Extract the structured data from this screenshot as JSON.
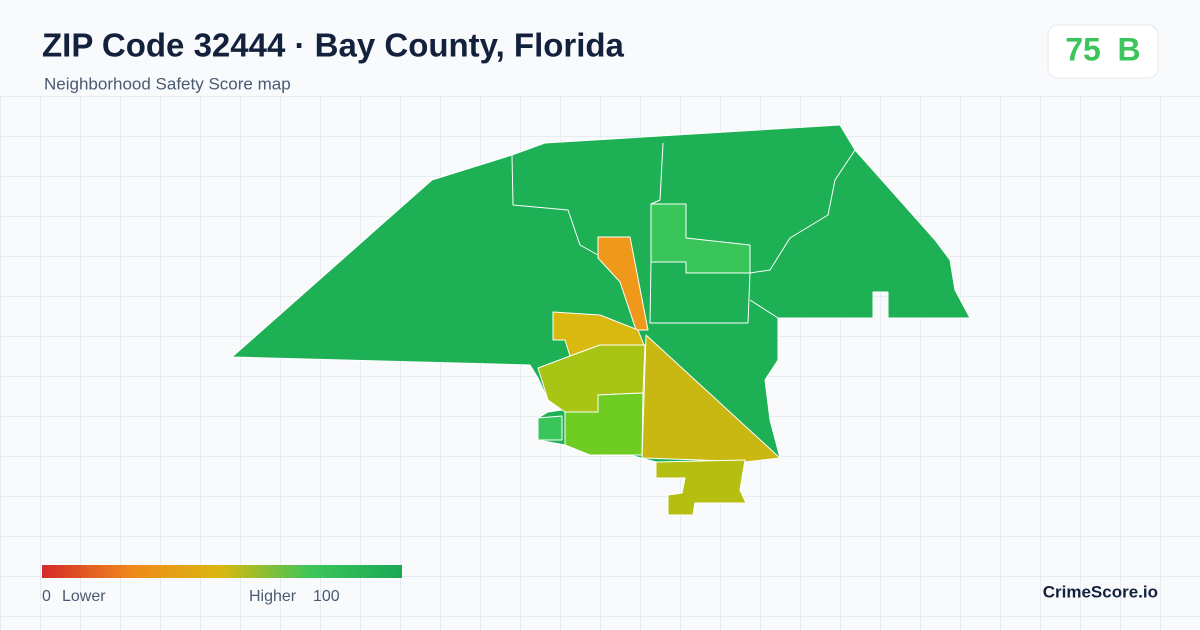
{
  "header": {
    "title": "ZIP Code 32444 · Bay County, Florida",
    "subtitle": "Neighborhood Safety Score map",
    "score": 75,
    "grade": "B"
  },
  "legend": {
    "min": 0,
    "min_label": "Lower",
    "max_label": "Higher",
    "max": 100
  },
  "footer": {
    "brand": "CrimeScore.io"
  }
}
